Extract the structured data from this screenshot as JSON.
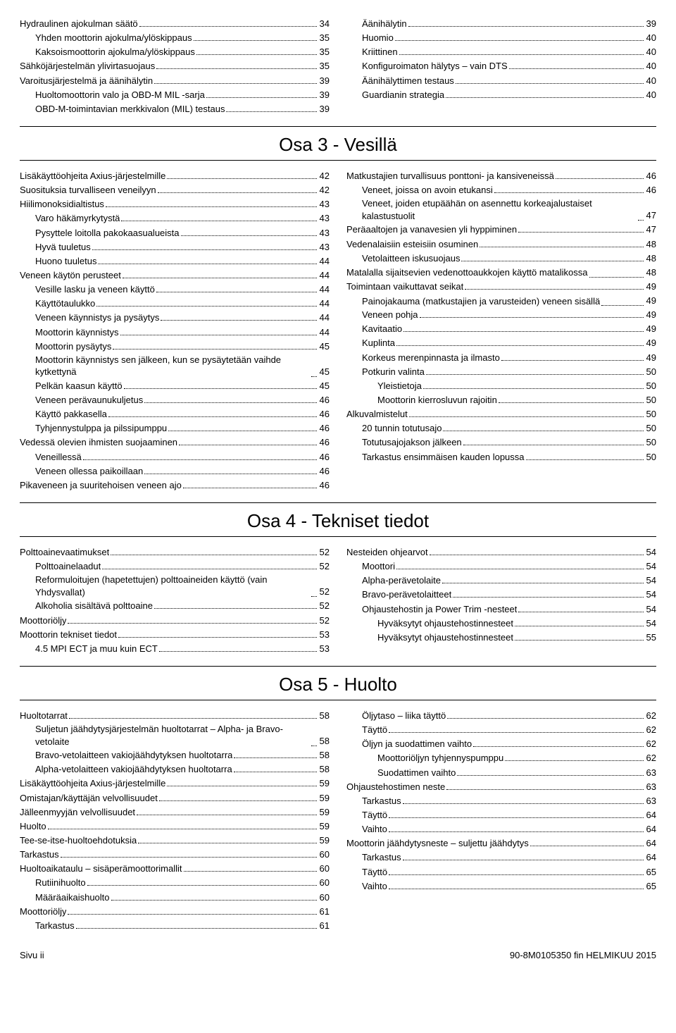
{
  "top": {
    "left": [
      {
        "t": "Hydraulinen ajokulman säätö",
        "p": "34",
        "i": 0
      },
      {
        "t": "Yhden moottorin ajokulma/ylöskippaus",
        "p": "35",
        "i": 1
      },
      {
        "t": "Kaksoismoottorin ajokulma/ylöskippaus",
        "p": "35",
        "i": 1
      },
      {
        "t": "Sähköjärjestelmän ylivirtasuojaus",
        "p": "35",
        "i": 0
      },
      {
        "t": "Varoitusjärjestelmä ja äänihälytin",
        "p": "39",
        "i": 0
      },
      {
        "t": "Huoltomoottorin valo ja OBD-M MIL -sarja",
        "p": "39",
        "i": 1
      },
      {
        "t": "OBD-M-toimintavian merkkivalon (MIL) testaus",
        "p": "39",
        "i": 1
      }
    ],
    "right": [
      {
        "t": "Äänihälytin",
        "p": "39",
        "i": 1
      },
      {
        "t": "Huomio",
        "p": "40",
        "i": 1
      },
      {
        "t": "Kriittinen",
        "p": "40",
        "i": 1
      },
      {
        "t": "Konfiguroimaton hälytys – vain DTS",
        "p": "40",
        "i": 1
      },
      {
        "t": "Äänihälyttimen testaus",
        "p": "40",
        "i": 1
      },
      {
        "t": "Guardianin strategia",
        "p": "40",
        "i": 1
      }
    ]
  },
  "osa3": {
    "title": "Osa 3 - Vesillä",
    "left": [
      {
        "t": "Lisäkäyttöohjeita Axius-järjestelmille",
        "p": "42",
        "i": 0
      },
      {
        "t": "Suosituksia turvalliseen veneilyyn",
        "p": "42",
        "i": 0
      },
      {
        "t": "Hiilimonoksidialtistus",
        "p": "43",
        "i": 0
      },
      {
        "t": "Varo häkämyrkytystä",
        "p": "43",
        "i": 1
      },
      {
        "t": "Pysyttele loitolla pakokaasualueista",
        "p": "43",
        "i": 1
      },
      {
        "t": "Hyvä tuuletus",
        "p": "43",
        "i": 1
      },
      {
        "t": "Huono tuuletus",
        "p": "44",
        "i": 1
      },
      {
        "t": "Veneen käytön perusteet",
        "p": "44",
        "i": 0
      },
      {
        "t": "Vesille lasku ja veneen käyttö",
        "p": "44",
        "i": 1
      },
      {
        "t": "Käyttötaulukko",
        "p": "44",
        "i": 1
      },
      {
        "t": "Veneen käynnistys ja pysäytys",
        "p": "44",
        "i": 1
      },
      {
        "t": "Moottorin käynnistys",
        "p": "44",
        "i": 1
      },
      {
        "t": "Moottorin pysäytys",
        "p": "45",
        "i": 1
      },
      {
        "t": "Moottorin käynnistys sen jälkeen, kun se pysäytetään vaihde kytkettynä",
        "p": "45",
        "i": 1,
        "wrap": true
      },
      {
        "t": "Pelkän kaasun käyttö",
        "p": "45",
        "i": 1
      },
      {
        "t": "Veneen perävaunukuljetus",
        "p": "46",
        "i": 1
      },
      {
        "t": "Käyttö pakkasella",
        "p": "46",
        "i": 1
      },
      {
        "t": "Tyhjennystulppa ja pilssipumppu",
        "p": "46",
        "i": 1
      },
      {
        "t": "Vedessä olevien ihmisten suojaaminen",
        "p": "46",
        "i": 0
      },
      {
        "t": "Veneillessä",
        "p": "46",
        "i": 1
      },
      {
        "t": "Veneen ollessa paikoillaan",
        "p": "46",
        "i": 1
      },
      {
        "t": "Pikaveneen ja suuritehoisen veneen ajo",
        "p": "46",
        "i": 0
      }
    ],
    "right": [
      {
        "t": "Matkustajien turvallisuus ponttoni- ja kansiveneissä",
        "p": "46",
        "i": 0
      },
      {
        "t": "Veneet, joissa on avoin etukansi",
        "p": "46",
        "i": 1
      },
      {
        "t": "Veneet, joiden etupäähän on asennettu korkeajalustaiset kalastustuolit",
        "p": "47",
        "i": 1,
        "wrap": true
      },
      {
        "t": "Peräaaltojen ja vanavesien yli hyppiminen",
        "p": "47",
        "i": 0
      },
      {
        "t": "Vedenalaisiin esteisiin osuminen",
        "p": "48",
        "i": 0
      },
      {
        "t": "Vetolaitteen iskusuojaus",
        "p": "48",
        "i": 1
      },
      {
        "t": "Matalalla sijaitsevien vedenottoaukkojen käyttö matalikossa",
        "p": "48",
        "i": 0,
        "wrap": true
      },
      {
        "t": "Toimintaan vaikuttavat seikat",
        "p": "49",
        "i": 0
      },
      {
        "t": "Painojakauma (matkustajien ja varusteiden) veneen sisällä",
        "p": "49",
        "i": 1,
        "wrap": true
      },
      {
        "t": "Veneen pohja",
        "p": "49",
        "i": 1
      },
      {
        "t": "Kavitaatio",
        "p": "49",
        "i": 1
      },
      {
        "t": "Kuplinta",
        "p": "49",
        "i": 1
      },
      {
        "t": "Korkeus merenpinnasta ja ilmasto",
        "p": "49",
        "i": 1
      },
      {
        "t": "Potkurin valinta",
        "p": "50",
        "i": 1
      },
      {
        "t": "Yleistietoja",
        "p": "50",
        "i": 2
      },
      {
        "t": "Moottorin kierrosluvun rajoitin",
        "p": "50",
        "i": 2
      },
      {
        "t": "Alkuvalmistelut",
        "p": "50",
        "i": 0
      },
      {
        "t": "20 tunnin totutusajo",
        "p": "50",
        "i": 1
      },
      {
        "t": "Totutusajojakson jälkeen",
        "p": "50",
        "i": 1
      },
      {
        "t": "Tarkastus ensimmäisen kauden lopussa",
        "p": "50",
        "i": 1
      }
    ]
  },
  "osa4": {
    "title": "Osa 4 - Tekniset tiedot",
    "left": [
      {
        "t": "Polttoainevaatimukset",
        "p": "52",
        "i": 0
      },
      {
        "t": "Polttoainelaadut",
        "p": "52",
        "i": 1
      },
      {
        "t": "Reformuloitujen (hapetettujen) polttoaineiden käyttö (vain Yhdysvallat)",
        "p": "52",
        "i": 1,
        "wrap": true
      },
      {
        "t": "Alkoholia sisältävä polttoaine",
        "p": "52",
        "i": 1
      },
      {
        "t": "Moottoriöljy",
        "p": "52",
        "i": 0
      },
      {
        "t": "Moottorin tekniset tiedot",
        "p": "53",
        "i": 0
      },
      {
        "t": "4.5 MPI ECT ja muu kuin ECT",
        "p": "53",
        "i": 1
      }
    ],
    "right": [
      {
        "t": "Nesteiden ohjearvot",
        "p": "54",
        "i": 0
      },
      {
        "t": "Moottori",
        "p": "54",
        "i": 1
      },
      {
        "t": "Alpha-perävetolaite",
        "p": "54",
        "i": 1
      },
      {
        "t": "Bravo-perävetolaitteet",
        "p": "54",
        "i": 1
      },
      {
        "t": "Ohjaustehostin ja Power Trim -nesteet",
        "p": "54",
        "i": 1
      },
      {
        "t": "Hyväksytyt ohjaustehostinnesteet",
        "p": "54",
        "i": 2
      },
      {
        "t": "Hyväksytyt ohjaustehostinnesteet",
        "p": "55",
        "i": 2
      }
    ]
  },
  "osa5": {
    "title": "Osa 5 - Huolto",
    "left": [
      {
        "t": "Huoltotarrat",
        "p": "58",
        "i": 0
      },
      {
        "t": "Suljetun jäähdytysjärjestelmän huoltotarrat – Alpha- ja Bravo-vetolaite",
        "p": "58",
        "i": 1,
        "wrap": true
      },
      {
        "t": "Bravo-vetolaitteen vakiojäähdytyksen huoltotarra",
        "p": "58",
        "i": 1
      },
      {
        "t": "Alpha-vetolaitteen vakiojäähdytyksen huoltotarra",
        "p": "58",
        "i": 1
      },
      {
        "t": "Lisäkäyttöohjeita Axius-järjestelmille",
        "p": "59",
        "i": 0
      },
      {
        "t": "Omistajan/käyttäjän velvollisuudet",
        "p": "59",
        "i": 0
      },
      {
        "t": "Jälleenmyyjän velvollisuudet",
        "p": "59",
        "i": 0
      },
      {
        "t": "Huolto",
        "p": "59",
        "i": 0
      },
      {
        "t": "Tee-se-itse-huoltoehdotuksia",
        "p": "59",
        "i": 0
      },
      {
        "t": "Tarkastus",
        "p": "60",
        "i": 0
      },
      {
        "t": "Huoltoaikataulu – sisäperämoottorimallit",
        "p": "60",
        "i": 0
      },
      {
        "t": "Rutiinihuolto",
        "p": "60",
        "i": 1
      },
      {
        "t": "Määräaikaishuolto",
        "p": "60",
        "i": 1
      },
      {
        "t": "Moottoriöljy",
        "p": "61",
        "i": 0
      },
      {
        "t": "Tarkastus",
        "p": "61",
        "i": 1
      }
    ],
    "right": [
      {
        "t": "Öljytaso – liika täyttö",
        "p": "62",
        "i": 1
      },
      {
        "t": "Täyttö",
        "p": "62",
        "i": 1
      },
      {
        "t": "Öljyn ja suodattimen vaihto",
        "p": "62",
        "i": 1
      },
      {
        "t": "Moottoriöljyn tyhjennyspumppu",
        "p": "62",
        "i": 2
      },
      {
        "t": "Suodattimen vaihto",
        "p": "63",
        "i": 2
      },
      {
        "t": "Ohjaustehostimen neste",
        "p": "63",
        "i": 0
      },
      {
        "t": "Tarkastus",
        "p": "63",
        "i": 1
      },
      {
        "t": "Täyttö",
        "p": "64",
        "i": 1
      },
      {
        "t": "Vaihto",
        "p": "64",
        "i": 1
      },
      {
        "t": "Moottorin jäähdytysneste – suljettu jäähdytys",
        "p": "64",
        "i": 0
      },
      {
        "t": "Tarkastus",
        "p": "64",
        "i": 1
      },
      {
        "t": "Täyttö",
        "p": "65",
        "i": 1
      },
      {
        "t": "Vaihto",
        "p": "65",
        "i": 1
      }
    ]
  },
  "footer": {
    "left": "Sivu  ii",
    "right": "90-8M0105350   fin   HELMIKUU 2015"
  }
}
